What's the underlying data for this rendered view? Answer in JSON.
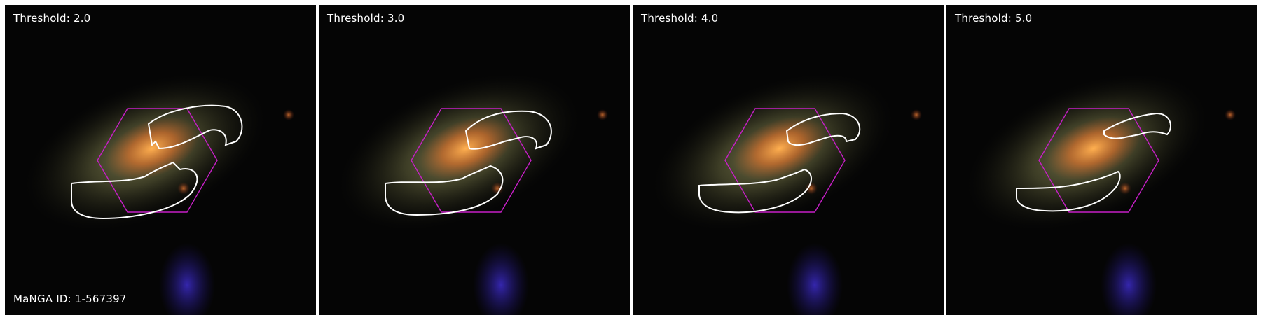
{
  "panels": [
    {
      "threshold_label": "Threshold: 2.0",
      "manga_id": "MaNGA ID: 1-567397"
    },
    {
      "threshold_label": "Threshold: 3.0"
    },
    {
      "threshold_label": "Threshold: 4.0"
    },
    {
      "threshold_label": "Threshold: 5.0"
    }
  ],
  "colors": {
    "contour": "#ffffff",
    "hexagon": "#c71fc7",
    "background": "#050505",
    "galaxy_core": "#e07830",
    "galaxy_disk": "#8a8a52",
    "blue_source": "#2a1f9a"
  }
}
